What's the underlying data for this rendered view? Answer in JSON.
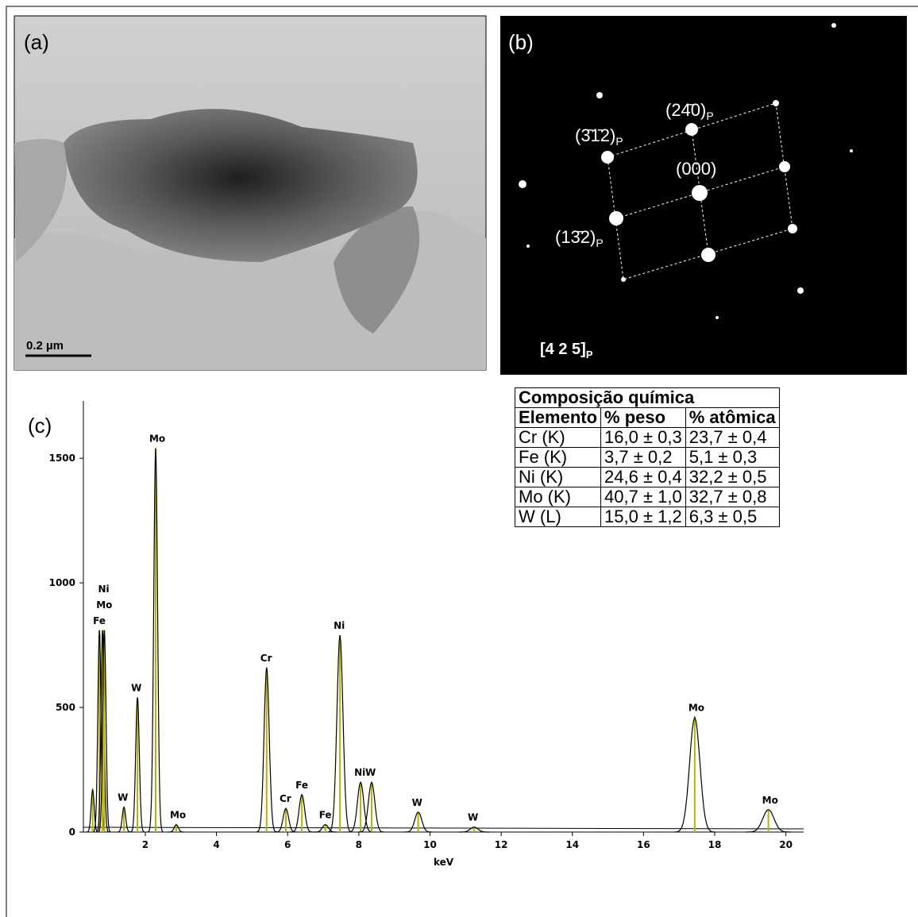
{
  "panels": {
    "a": {
      "label": "(a)",
      "scale_bar": "0.2 µm"
    },
    "b": {
      "label": "(b)",
      "spots": [
        {
          "label": "(24̄0)",
          "sub": "P"
        },
        {
          "label": "(3̄1̄2)",
          "sub": "P"
        },
        {
          "label": "(000)",
          "sub": null
        },
        {
          "label": "(13̄2)",
          "sub": "P"
        }
      ],
      "zone_axis": {
        "label": "[4 2 5]",
        "sub": "P"
      }
    }
  },
  "table": {
    "title": "Composição química",
    "header": [
      "Elemento",
      "% peso",
      "% atômica"
    ],
    "rows": [
      [
        "Cr (K)",
        "16,0 ± 0,3",
        "23,7 ± 0,4"
      ],
      [
        "Fe (K)",
        "3,7 ± 0,2",
        "5,1 ± 0,3"
      ],
      [
        "Ni (K)",
        "24,6 ± 0,4",
        "32,2 ± 0,5"
      ],
      [
        "Mo (K)",
        "40,7 ± 1,0",
        "32,7 ± 0,8"
      ],
      [
        "W (L)",
        "15,0 ± 1,2",
        "6,3 ± 0,5"
      ]
    ]
  },
  "chart_data": {
    "type": "spectrum",
    "panel_label": "(c)",
    "xlabel": "keV",
    "xlim": [
      0.26,
      20.5
    ],
    "xticks": [
      2,
      4,
      6,
      8,
      10,
      12,
      14,
      16,
      18,
      20
    ],
    "ylim": [
      0,
      1730
    ],
    "yticks": [
      0,
      500,
      1000,
      1500
    ],
    "line_color": "#000000",
    "marker_color": "#b8b000",
    "peaks": [
      {
        "label": null,
        "energy": 0.52,
        "height": 170
      },
      {
        "label": "Fe",
        "energy": 0.71,
        "height": 810
      },
      {
        "label": "Mo",
        "energy": 0.8,
        "height": 810
      },
      {
        "label": "Ni",
        "energy": 0.85,
        "height": 810
      },
      {
        "label": "W",
        "energy": 1.4,
        "height": 100
      },
      {
        "label": "W",
        "energy": 1.78,
        "height": 540
      },
      {
        "label": "Mo",
        "energy": 2.29,
        "height": 1540
      },
      {
        "label": "Mo",
        "energy": 2.87,
        "height": 30
      },
      {
        "label": "Cr",
        "energy": 5.41,
        "height": 660
      },
      {
        "label": "Cr",
        "energy": 5.95,
        "height": 95
      },
      {
        "label": "Fe",
        "energy": 6.4,
        "height": 150
      },
      {
        "label": "Fe",
        "energy": 7.06,
        "height": 30
      },
      {
        "label": "Ni",
        "energy": 7.47,
        "height": 790
      },
      {
        "label": "Ni",
        "energy": 8.05,
        "height": 200
      },
      {
        "label": "W",
        "energy": 8.36,
        "height": 200
      },
      {
        "label": "W",
        "energy": 9.67,
        "height": 80
      },
      {
        "label": "W",
        "energy": 11.24,
        "height": 20
      },
      {
        "label": "Mo",
        "energy": 17.44,
        "height": 460
      },
      {
        "label": "Mo",
        "energy": 19.51,
        "height": 90
      }
    ]
  }
}
